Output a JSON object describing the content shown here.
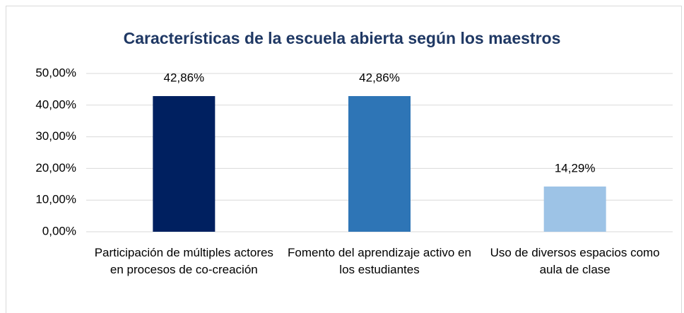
{
  "chart_data": {
    "type": "bar",
    "title": "Características de la escuela abierta según los maestros",
    "categories": [
      "Participación de múltiples actores en procesos de co-creación",
      "Fomento del aprendizaje activo en los estudiantes",
      "Uso de diversos espacios como aula de clase"
    ],
    "values": [
      42.86,
      42.86,
      14.29
    ],
    "value_labels": [
      "42,86%",
      "42,86%",
      "14,29%"
    ],
    "colors": [
      "#002060",
      "#2e75b6",
      "#9dc3e6"
    ],
    "ylim": [
      0,
      50
    ],
    "yticks": [
      {
        "value": 0,
        "label": "0,00%"
      },
      {
        "value": 10,
        "label": "10,00%"
      },
      {
        "value": 20,
        "label": "20,00%"
      },
      {
        "value": 30,
        "label": "30,00%"
      },
      {
        "value": 40,
        "label": "40,00%"
      },
      {
        "value": 50,
        "label": "50,00%"
      }
    ],
    "grid": true
  }
}
